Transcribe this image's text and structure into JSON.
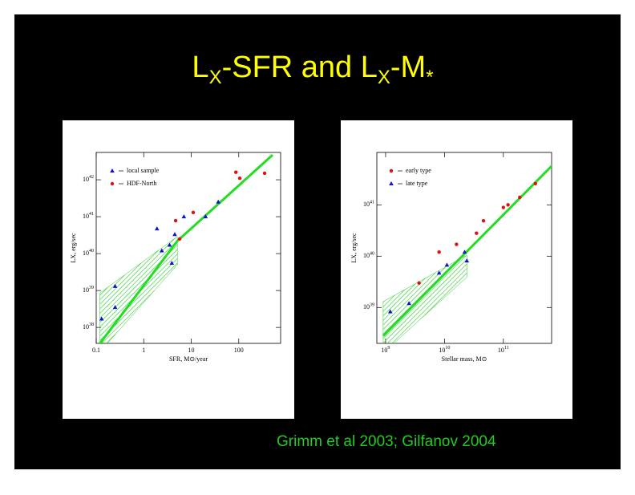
{
  "slide": {
    "title_parts": [
      "L",
      "X",
      "-SFR and L",
      "X",
      "-M",
      "*"
    ],
    "citation": "Grimm et al 2003; Gilfanov 2004"
  },
  "chart_data": [
    {
      "type": "scatter",
      "log_x": true,
      "log_y": true,
      "x_label": "SFR, M⊙/year",
      "y_label": "LX, erg/sec",
      "xlim": [
        0.1,
        760
      ],
      "ylim": [
        3.7e+37,
        5.5e+42
      ],
      "xticks": [
        0.1,
        1,
        10,
        100
      ],
      "yticks": [
        {
          "value": 1e+38,
          "label": "10",
          "exponent": "38"
        },
        {
          "value": 1e+39,
          "label": "10",
          "exponent": "39"
        },
        {
          "value": 1e+40,
          "label": "10",
          "exponent": "40"
        },
        {
          "value": 1e+41,
          "label": "10",
          "exponent": "41"
        },
        {
          "value": 1e+42,
          "label": "10",
          "exponent": "42"
        }
      ],
      "series": [
        {
          "name": "local sample",
          "color": "#1010d0",
          "marker": "triangle",
          "x": [
            0.13,
            0.25,
            0.25,
            1.9,
            2.4,
            3.5,
            3.9,
            4.5,
            7.0,
            20,
            37
          ],
          "values": [
            1.7e+38,
            1.3e+39,
            3.5e+38,
            4.7e+40,
            1.2e+40,
            1.7e+40,
            5.5e+39,
            3.3e+40,
            1e+41,
            1e+41,
            2.5e+41
          ]
        },
        {
          "name": "HDF-North",
          "color": "#e01010",
          "marker": "circle",
          "x": [
            4.7,
            5.7,
            11,
            87,
            105,
            350
          ],
          "values": [
            7.8e+40,
            2.5e+40,
            1.3e+41,
            1.6e+42,
            1.1e+42,
            1.5e+42
          ]
        }
      ],
      "fit": {
        "color": "#22dd22",
        "x": [
          0.12,
          5.1,
          515
        ],
        "values": [
          3.7e+37,
          2.2e+40,
          4.7e+42
        ]
      },
      "band": {
        "color": "#22cc22",
        "x": [
          0.12,
          5.1
        ],
        "low": [
          2.2e+37,
          5e+39
        ],
        "high": [
          8.6e+38,
          2.9e+40
        ]
      }
    },
    {
      "type": "scatter",
      "log_x": true,
      "log_y": true,
      "x_label": "Stellar mass, M⊙",
      "y_label": "LX, erg/sec",
      "xlim": [
        710000000.0,
        660000000000.0
      ],
      "ylim": [
        2e+38,
        1.05e+42
      ],
      "xticks": [
        {
          "value": 1000000000.0,
          "label": "10",
          "exponent": "9"
        },
        {
          "value": 10000000000.0,
          "label": "10",
          "exponent": "10"
        },
        {
          "value": 100000000000.0,
          "label": "10",
          "exponent": "11"
        }
      ],
      "yticks": [
        {
          "value": 1e+39,
          "label": "10",
          "exponent": "39"
        },
        {
          "value": 1e+40,
          "label": "10",
          "exponent": "40"
        },
        {
          "value": 1e+41,
          "label": "10",
          "exponent": "41"
        }
      ],
      "series": [
        {
          "name": "early type",
          "color": "#e01010",
          "marker": "circle",
          "x": [
            3700000000.0,
            8100000000.0,
            16000000000.0,
            35000000000.0,
            46000000000.0,
            100000000000.0,
            120000000000.0,
            190000000000.0,
            350000000000.0
          ],
          "values": [
            3e+39,
            1.2e+40,
            1.7e+40,
            2.8e+40,
            4.9e+40,
            8.9e+40,
            1e+41,
            1.4e+41,
            2.6e+41
          ]
        },
        {
          "name": "late type",
          "color": "#1010d0",
          "marker": "triangle",
          "x": [
            1200000000.0,
            2500000000.0,
            8100000000.0,
            11000000000.0,
            22000000000.0,
            24000000000.0
          ],
          "values": [
            8.3e+38,
            1.2e+39,
            4.7e+39,
            6.7e+39,
            1.2e+40,
            8.1e+39
          ]
        }
      ],
      "fit": {
        "color": "#22dd22",
        "x": [
          910000000.0,
          690000000000.0
        ],
        "values": [
          2.8e+38,
          6e+41
        ]
      },
      "band": {
        "color": "#22cc22",
        "x": [
          910000000.0,
          24000000000.0
        ],
        "low": [
          1.3e+38,
          3.9e+39
        ],
        "high": [
          1.3e+39,
          1.05e+40
        ]
      }
    }
  ]
}
